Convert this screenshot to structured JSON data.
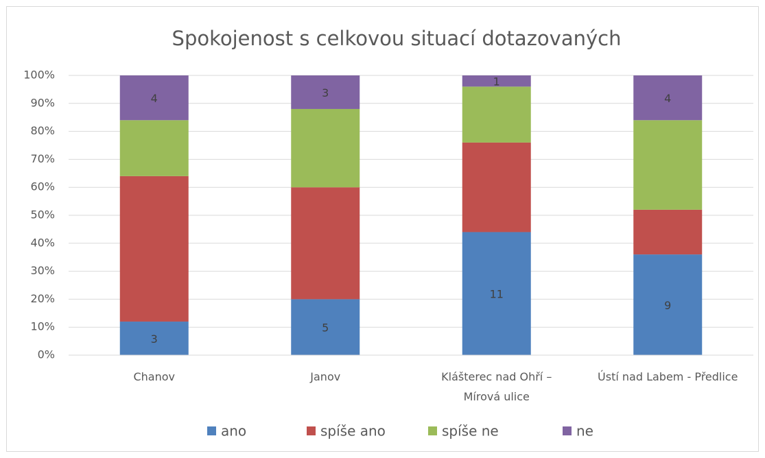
{
  "chart_data": {
    "type": "bar",
    "stacked": "percent",
    "title": "Spokojenost s celkovou situací dotazovaných",
    "categories": [
      "Chanov",
      "Janov",
      "Klášterec nad Ohří –\nMírová ulice",
      "Ústí nad Labem - Předlice"
    ],
    "series": [
      {
        "name": "ano",
        "color": "#4f81bd",
        "values": [
          3,
          5,
          11,
          9
        ],
        "labels": true
      },
      {
        "name": "spíše ano",
        "color": "#c0504d",
        "values": [
          13,
          10,
          8,
          4
        ],
        "labels": false
      },
      {
        "name": "spíše ne",
        "color": "#9bbb59",
        "values": [
          5,
          7,
          5,
          8
        ],
        "labels": false
      },
      {
        "name": "ne",
        "color": "#8064a2",
        "values": [
          4,
          3,
          1,
          4
        ],
        "labels": true
      }
    ],
    "ylim": [
      0,
      100
    ],
    "yticks": [
      {
        "value": 0,
        "label": "0%"
      },
      {
        "value": 10,
        "label": "10%"
      },
      {
        "value": 20,
        "label": "20%"
      },
      {
        "value": 30,
        "label": "30%"
      },
      {
        "value": 40,
        "label": "40%"
      },
      {
        "value": 50,
        "label": "50%"
      },
      {
        "value": 60,
        "label": "60%"
      },
      {
        "value": 70,
        "label": "70%"
      },
      {
        "value": 80,
        "label": "80%"
      },
      {
        "value": 90,
        "label": "90%"
      },
      {
        "value": 100,
        "label": "100%"
      }
    ],
    "grid": true,
    "legend": "bottom"
  }
}
